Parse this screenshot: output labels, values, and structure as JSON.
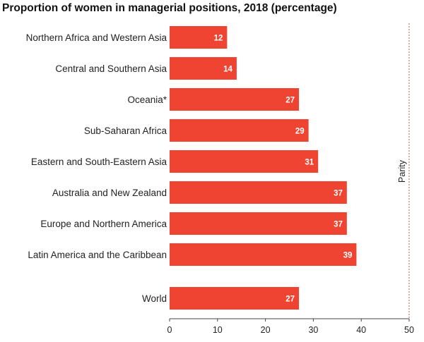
{
  "chart_data": {
    "type": "bar",
    "orientation": "horizontal",
    "title": "Proportion of women in managerial positions, 2018 (percentage)",
    "categories": [
      "Northern Africa and Western Asia",
      "Central and Southern Asia",
      "Oceania*",
      "Sub-Saharan Africa",
      "Eastern and South-Eastern Asia",
      "Australia and New Zealand",
      "Europe and Northern America",
      "Latin America and the Caribbean",
      "World"
    ],
    "values": [
      12,
      14,
      27,
      29,
      31,
      37,
      37,
      39,
      27
    ],
    "data_labels": [
      "12",
      "14",
      "27",
      "29",
      "31",
      "37",
      "37",
      "39",
      "27"
    ],
    "xlim": [
      0,
      50
    ],
    "x_ticks": [
      "0",
      "10",
      "20",
      "30",
      "40",
      "50"
    ],
    "reference_line": {
      "value": 50,
      "label": "Parity",
      "style": "dashed"
    },
    "grid": false,
    "bar_color": "#ee4431",
    "reference_line_color": "#d9534f"
  }
}
